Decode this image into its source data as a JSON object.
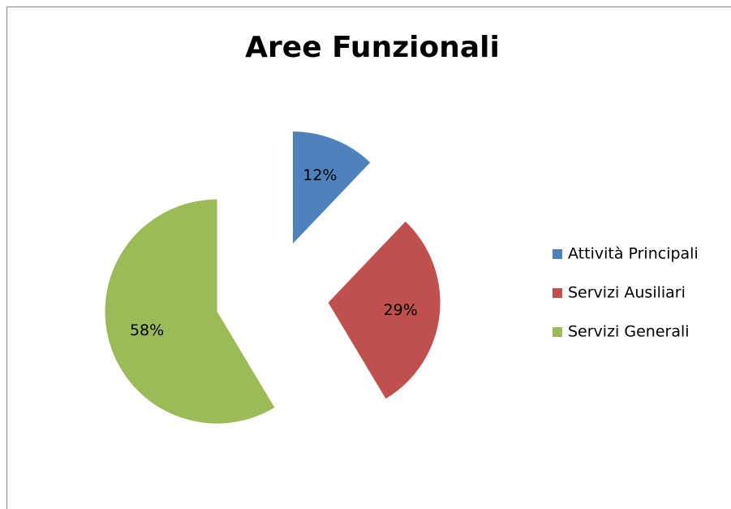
{
  "chart_data": {
    "type": "pie",
    "title": "Aree Funzionali",
    "categories": [
      "Attività Principali",
      "Servizi Ausiliari",
      "Servizi Generali"
    ],
    "values": [
      12,
      29,
      58
    ],
    "value_labels": [
      "12%",
      "29%",
      "58%"
    ],
    "colors": [
      "#4f81bd",
      "#c0504d",
      "#9bbb59"
    ],
    "legend": "right"
  }
}
